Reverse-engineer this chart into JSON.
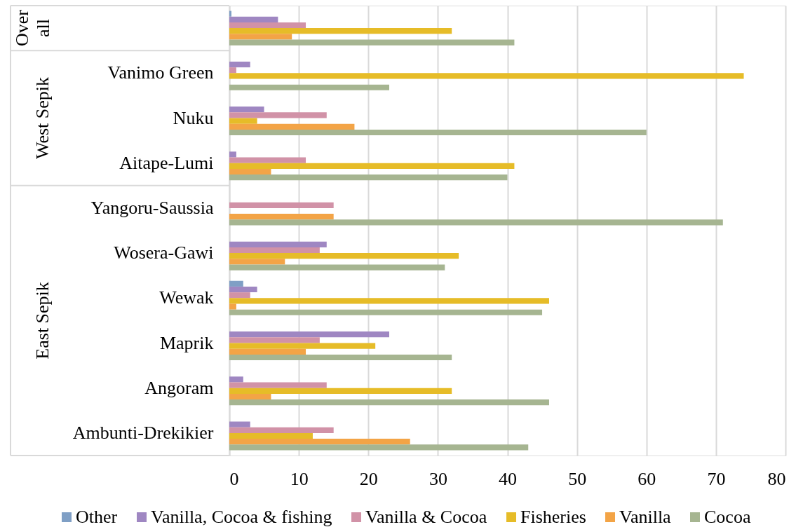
{
  "chart_data": {
    "type": "bar",
    "orientation": "horizontal",
    "categories": [
      null,
      "Vanimo Green",
      "Nuku",
      "Aitape-Lumi",
      "Yangoru-Saussia",
      "Wosera-Gawi",
      "Wewak",
      "Maprik",
      "Angoram",
      "Ambunti-Drekikier"
    ],
    "series": [
      {
        "name": "Other",
        "color": "#7f9fc5",
        "values": [
          0.3,
          null,
          null,
          null,
          null,
          null,
          2,
          null,
          null,
          null
        ]
      },
      {
        "name": "Vanilla, Cocoa & fishing",
        "color": "#9f87c2",
        "values": [
          7,
          3,
          5,
          1,
          null,
          14,
          4,
          23,
          2,
          3
        ]
      },
      {
        "name": "Vanilla & Cocoa",
        "color": "#d192a7",
        "values": [
          11,
          1,
          14,
          11,
          15,
          13,
          3,
          13,
          14,
          15
        ]
      },
      {
        "name": "Fisheries",
        "color": "#e6bc28",
        "values": [
          32,
          74,
          4,
          41,
          null,
          33,
          46,
          21,
          32,
          12
        ]
      },
      {
        "name": "Vanilla",
        "color": "#f3a446",
        "values": [
          9,
          null,
          18,
          6,
          15,
          8,
          1,
          11,
          6,
          26
        ]
      },
      {
        "name": "Cocoa",
        "color": "#a6b591",
        "values": [
          41,
          23,
          60,
          40,
          71,
          31,
          45,
          32,
          46,
          43
        ]
      }
    ],
    "xlim": [
      0,
      80
    ],
    "xticks": [
      0,
      10,
      20,
      30,
      40,
      50,
      60,
      70,
      80
    ],
    "grid": "x",
    "legend": "bottom",
    "annotations": [
      "Over all",
      "West Sepik",
      "East Sepik"
    ]
  }
}
